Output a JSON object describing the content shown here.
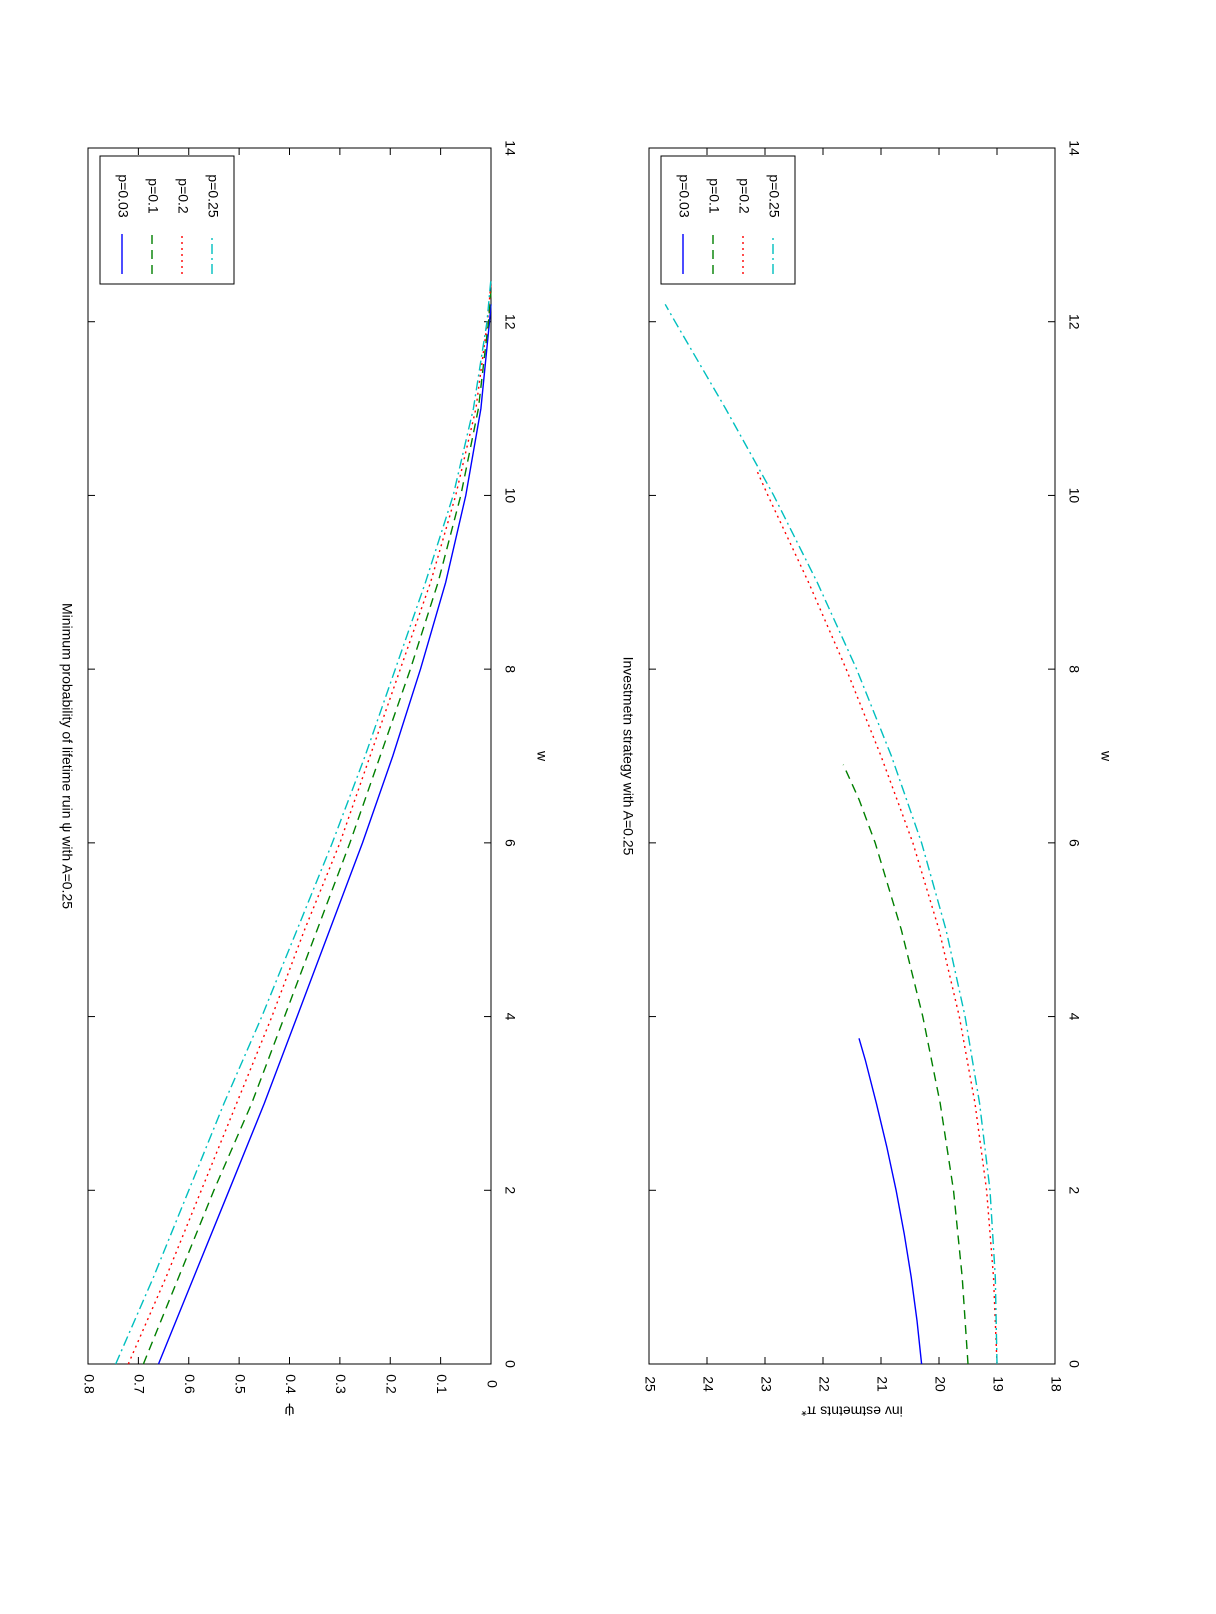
{
  "figure": {
    "orientation": "rotated-90-clockwise",
    "background": "#ffffff"
  },
  "chart_data": [
    {
      "id": "top",
      "type": "line",
      "title": "Minimum probability of lifetime ruin ψ with A=0.25",
      "xlabel": "w",
      "ylabel": "ψ",
      "xlim": [
        0,
        14
      ],
      "ylim": [
        0,
        0.8
      ],
      "xticks": [
        0,
        2,
        4,
        6,
        8,
        10,
        12,
        14
      ],
      "xtick_labels": [
        "0",
        "2",
        "4",
        "6",
        "8",
        "10",
        "12",
        "14"
      ],
      "yticks": [
        0,
        0.1,
        0.2,
        0.3,
        0.4,
        0.5,
        0.6,
        0.7,
        0.8
      ],
      "ytick_labels": [
        "0",
        "0.1",
        "0.2",
        "0.3",
        "0.4",
        "0.5",
        "0.6",
        "0.7",
        "0.8"
      ],
      "grid": false,
      "legend_position": "top-right",
      "series": [
        {
          "name": "p=0.03",
          "color": "#0000ff",
          "style": "solid",
          "x": [
            0,
            1,
            2,
            3,
            4,
            5,
            6,
            7,
            8,
            9,
            10,
            11,
            12,
            12.2
          ],
          "y": [
            0.66,
            0.59,
            0.52,
            0.45,
            0.385,
            0.32,
            0.255,
            0.195,
            0.14,
            0.09,
            0.05,
            0.02,
            0.003,
            0
          ]
        },
        {
          "name": "p=0.1",
          "color": "#007f00",
          "style": "dashed",
          "x": [
            0,
            1,
            2,
            3,
            4,
            5,
            6,
            7,
            8,
            9,
            10,
            11,
            12,
            12.35
          ],
          "y": [
            0.69,
            0.62,
            0.55,
            0.475,
            0.41,
            0.345,
            0.28,
            0.22,
            0.16,
            0.105,
            0.06,
            0.025,
            0.005,
            0
          ]
        },
        {
          "name": "p=0.2",
          "color": "#ff0000",
          "style": "dotted",
          "x": [
            0,
            1,
            2,
            3,
            4,
            5,
            6,
            7,
            8,
            9,
            10,
            11,
            12,
            12.45
          ],
          "y": [
            0.72,
            0.645,
            0.575,
            0.505,
            0.435,
            0.37,
            0.3,
            0.24,
            0.18,
            0.12,
            0.07,
            0.03,
            0.007,
            0
          ]
        },
        {
          "name": "p=0.25",
          "color": "#00bfbf",
          "style": "dashdot",
          "x": [
            0,
            1,
            2,
            3,
            4,
            5,
            6,
            7,
            8,
            9,
            10,
            11,
            12,
            12.5
          ],
          "y": [
            0.745,
            0.67,
            0.6,
            0.53,
            0.455,
            0.385,
            0.315,
            0.25,
            0.19,
            0.13,
            0.075,
            0.035,
            0.008,
            0
          ]
        }
      ]
    },
    {
      "id": "bottom",
      "type": "line",
      "title": "Investmetn strategy with A=0.25",
      "xlabel": "w",
      "ylabel": "inv estmetnts π*",
      "xlim": [
        0,
        14
      ],
      "ylim": [
        18,
        25
      ],
      "xticks": [
        0,
        2,
        4,
        6,
        8,
        10,
        12,
        14
      ],
      "xtick_labels": [
        "0",
        "2",
        "4",
        "6",
        "8",
        "10",
        "12",
        "14"
      ],
      "yticks": [
        18,
        19,
        20,
        21,
        22,
        23,
        24,
        25
      ],
      "ytick_labels": [
        "18",
        "19",
        "20",
        "21",
        "22",
        "23",
        "24",
        "25"
      ],
      "grid": false,
      "legend_position": "top-right",
      "series": [
        {
          "name": "p=0.03",
          "color": "#0000ff",
          "style": "solid",
          "x": [
            0,
            0.5,
            1,
            1.5,
            2,
            2.5,
            3,
            3.5,
            3.75
          ],
          "y": [
            20.3,
            20.38,
            20.48,
            20.6,
            20.74,
            20.9,
            21.08,
            21.27,
            21.38
          ]
        },
        {
          "name": "p=0.1",
          "color": "#007f00",
          "style": "dashed",
          "x": [
            0,
            1,
            2,
            3,
            4,
            5,
            6,
            6.5,
            6.9
          ],
          "y": [
            19.5,
            19.6,
            19.75,
            19.98,
            20.28,
            20.65,
            21.1,
            21.38,
            21.65
          ]
        },
        {
          "name": "p=0.2",
          "color": "#ff0000",
          "style": "dotted",
          "x": [
            0,
            1,
            2,
            3,
            4,
            5,
            6,
            7,
            8,
            9,
            10,
            10.3
          ],
          "y": [
            19.0,
            19.06,
            19.18,
            19.38,
            19.65,
            20.0,
            20.45,
            21.0,
            21.6,
            22.25,
            22.95,
            23.15
          ]
        },
        {
          "name": "p=0.25",
          "color": "#00bfbf",
          "style": "dashdot",
          "x": [
            0,
            1,
            2,
            3,
            4,
            5,
            6,
            7,
            8,
            9,
            10,
            11,
            12,
            12.2
          ],
          "y": [
            19.0,
            19.03,
            19.12,
            19.3,
            19.55,
            19.88,
            20.3,
            20.82,
            21.42,
            22.1,
            22.85,
            23.68,
            24.55,
            24.72
          ]
        }
      ]
    }
  ]
}
